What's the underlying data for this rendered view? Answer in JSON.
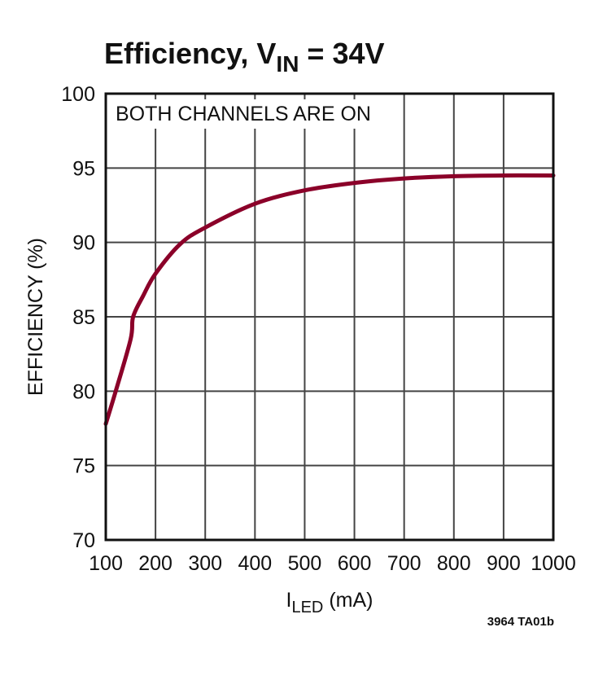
{
  "chart_data": {
    "type": "line",
    "title": "Efficiency, V",
    "title_subscript": "IN",
    "title_suffix": " = 34V",
    "annotation": "BOTH CHANNELS ARE ON",
    "xlabel": "I",
    "xlabel_subscript": "LED",
    "xlabel_suffix": " (mA)",
    "ylabel": "EFFICIENCY (%)",
    "footnote": "3964 TA01b",
    "xlim": [
      100,
      1000
    ],
    "ylim": [
      70,
      100
    ],
    "xticks": [
      100,
      200,
      300,
      400,
      500,
      600,
      700,
      800,
      900,
      1000
    ],
    "yticks": [
      70,
      75,
      80,
      85,
      90,
      95,
      100
    ],
    "grid": true,
    "line_color": "#8b0029",
    "series": [
      {
        "x": [
          100,
          120,
          150,
          155,
          175,
          200,
          250,
          300,
          400,
          500,
          600,
          700,
          800,
          900,
          1000
        ],
        "y": [
          77.8,
          80.0,
          83.5,
          85.0,
          86.4,
          87.9,
          89.9,
          91.0,
          92.6,
          93.5,
          94.0,
          94.3,
          94.45,
          94.5,
          94.5
        ]
      }
    ]
  }
}
